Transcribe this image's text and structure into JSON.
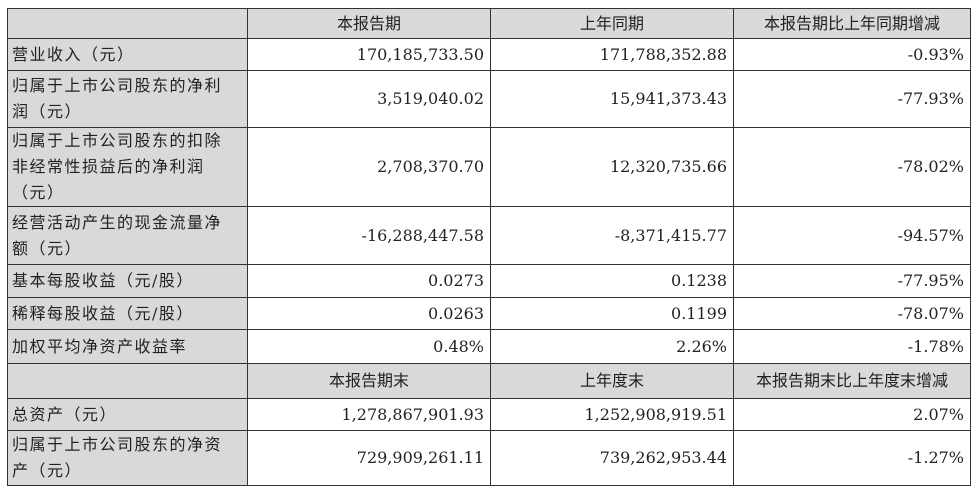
{
  "header1": [
    "",
    "本报告期",
    "上年同期",
    "本报告期比上年同期增减"
  ],
  "rows1": [
    {
      "label": [
        "营业收入（元）"
      ],
      "current": "170,185,733.50",
      "prior": "171,788,352.88",
      "change": "-0.93%"
    },
    {
      "label": [
        "归属于上市公司股东的净利",
        "润（元）"
      ],
      "current": "3,519,040.02",
      "prior": "15,941,373.43",
      "change": "-77.93%"
    },
    {
      "label": [
        "归属于上市公司股东的扣除",
        "非经常性损益后的净利润",
        "（元）"
      ],
      "current": "2,708,370.70",
      "prior": "12,320,735.66",
      "change": "-78.02%"
    },
    {
      "label": [
        "经营活动产生的现金流量净",
        "额（元）"
      ],
      "current": "-16,288,447.58",
      "prior": "-8,371,415.77",
      "change": "-94.57%"
    },
    {
      "label": [
        "基本每股收益（元/股）"
      ],
      "current": "0.0273",
      "prior": "0.1238",
      "change": "-77.95%"
    },
    {
      "label": [
        "稀释每股收益（元/股）"
      ],
      "current": "0.0263",
      "prior": "0.1199",
      "change": "-78.07%"
    },
    {
      "label": [
        "加权平均净资产收益率"
      ],
      "current": "0.48%",
      "prior": "2.26%",
      "change": "-1.78%"
    }
  ],
  "header2": [
    "",
    "本报告期末",
    "上年度末",
    "本报告期末比上年度末增减"
  ],
  "rows2": [
    {
      "label": [
        "总资产（元）"
      ],
      "current": "1,278,867,901.93",
      "prior": "1,252,908,919.51",
      "change": "2.07%"
    },
    {
      "label": [
        "归属于上市公司股东的净资",
        "产（元）"
      ],
      "current": "729,909,261.11",
      "prior": "739,262,953.44",
      "change": "-1.27%"
    }
  ]
}
